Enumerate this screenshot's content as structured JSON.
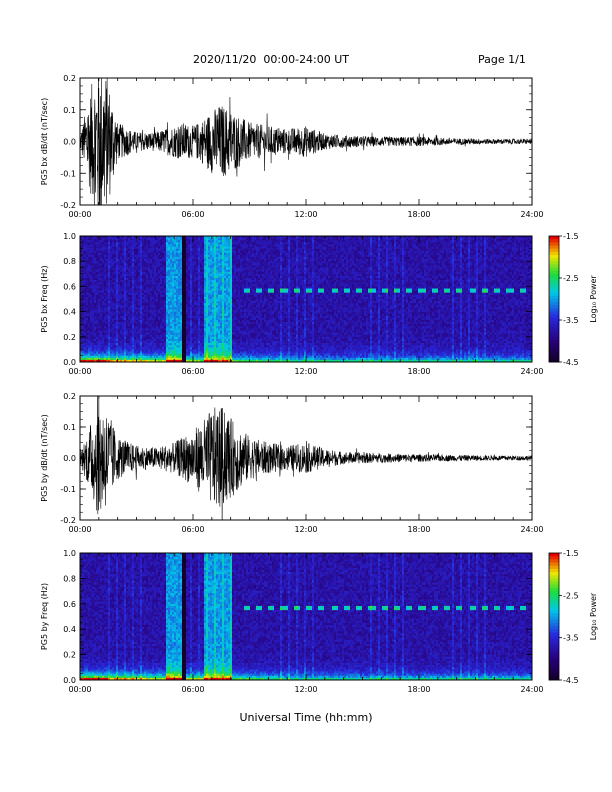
{
  "header": {
    "title": "2020/11/20  00:00-24:00 UT",
    "page": "Page 1/1"
  },
  "footer": {
    "xlabel": "Universal Time (hh:mm)"
  },
  "chart_data": [
    {
      "type": "line",
      "ylabel": "PG5 bx dB/dt (nT/sec)",
      "xlim": [
        "00:00",
        "24:00"
      ],
      "ylim": [
        -0.2,
        0.2
      ],
      "x_ticks": [
        "00:00",
        "06:00",
        "12:00",
        "18:00",
        "24:00"
      ],
      "y_ticks": [
        "0.2",
        "0.1",
        "0.0",
        "-0.1",
        "-0.2"
      ],
      "envelope": {
        "x_hours": [
          0,
          0.5,
          1,
          1.5,
          2,
          3,
          4,
          5,
          5.5,
          6,
          6.5,
          7,
          7.5,
          8,
          9,
          10,
          11,
          12,
          13,
          14,
          16,
          18,
          20,
          22,
          24
        ],
        "amplitude": [
          0.02,
          0.15,
          0.28,
          0.2,
          0.06,
          0.03,
          0.03,
          0.05,
          0.06,
          0.05,
          0.07,
          0.1,
          0.12,
          0.1,
          0.06,
          0.05,
          0.04,
          0.05,
          0.025,
          0.02,
          0.015,
          0.015,
          0.01,
          0.008,
          0.008
        ]
      }
    },
    {
      "type": "heatmap",
      "ylabel": "PG5 bx Freq (Hz)",
      "xlim": [
        "00:00",
        "24:00"
      ],
      "ylim": [
        0.0,
        1.0
      ],
      "x_ticks": [
        "00:00",
        "06:00",
        "12:00",
        "18:00",
        "24:00"
      ],
      "y_ticks": [
        "1.0",
        "0.8",
        "0.6",
        "0.4",
        "0.2",
        "0.0"
      ],
      "colorbar": {
        "label": "Log₁₀ Power",
        "ticks": [
          "-1.5",
          "-2.5",
          "-3.5",
          "-4.5"
        ],
        "range": [
          -4.5,
          -1.5
        ]
      }
    },
    {
      "type": "line",
      "ylabel": "PG5 by dB/dt (nT/sec)",
      "xlim": [
        "00:00",
        "24:00"
      ],
      "ylim": [
        -0.2,
        0.2
      ],
      "x_ticks": [
        "00:00",
        "06:00",
        "12:00",
        "18:00",
        "24:00"
      ],
      "y_ticks": [
        "0.2",
        "0.1",
        "0.0",
        "-0.1",
        "-0.2"
      ],
      "envelope": {
        "x_hours": [
          0,
          0.5,
          1,
          1.5,
          2,
          3,
          4,
          5,
          5.5,
          6,
          6.5,
          7,
          7.5,
          8,
          9,
          10,
          11,
          12,
          13,
          14,
          16,
          18,
          20,
          22,
          24
        ],
        "amplitude": [
          0.02,
          0.1,
          0.2,
          0.15,
          0.07,
          0.04,
          0.035,
          0.05,
          0.07,
          0.09,
          0.12,
          0.16,
          0.17,
          0.13,
          0.07,
          0.05,
          0.04,
          0.05,
          0.03,
          0.02,
          0.015,
          0.012,
          0.01,
          0.008,
          0.008
        ]
      }
    },
    {
      "type": "heatmap",
      "ylabel": "PG5 by Freq (Hz)",
      "xlim": [
        "00:00",
        "24:00"
      ],
      "ylim": [
        0.0,
        1.0
      ],
      "x_ticks": [
        "00:00",
        "06:00",
        "12:00",
        "18:00",
        "24:00"
      ],
      "y_ticks": [
        "1.0",
        "0.8",
        "0.6",
        "0.4",
        "0.2",
        "0.0"
      ],
      "colorbar": {
        "label": "Log₁₀ Power",
        "ticks": [
          "-1.5",
          "-2.5",
          "-3.5",
          "-4.5"
        ],
        "range": [
          -4.5,
          -1.5
        ]
      }
    }
  ]
}
